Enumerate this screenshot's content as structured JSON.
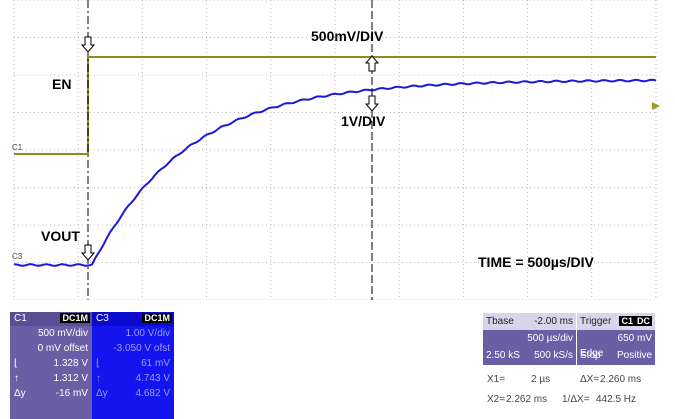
{
  "annotations": {
    "volts_div_top": "500mV/DIV",
    "volts_div_bottom": "1V/DIV",
    "en_label": "EN",
    "vout_label": "VOUT",
    "time_div": "TIME = 500µs/DIV",
    "trace_c1_tag": "C1",
    "trace_c3_tag": "C3"
  },
  "channels": [
    {
      "name": "C1",
      "coupling": "DC1M",
      "scale": "500 mV/div",
      "offset": "0 mV offset",
      "rows": [
        {
          "sym": "⌊",
          "value": "1.328 V"
        },
        {
          "sym": "↑",
          "value": "1.312 V"
        },
        {
          "sym": "Δy",
          "value": "-16 mV"
        }
      ]
    },
    {
      "name": "C3",
      "coupling": "DC1M",
      "scale": "1.00 V/div",
      "offset": "-3.050 V ofst",
      "rows": [
        {
          "sym": "⌊",
          "value": "61 mV"
        },
        {
          "sym": "↑",
          "value": "4.743 V"
        },
        {
          "sym": "Δy",
          "value": "4.682 V"
        }
      ]
    }
  ],
  "timebase": {
    "label": "Tbase",
    "delay": "-2.00 ms",
    "time_div": "500 µs/div",
    "samples": "2.50 kS",
    "rate": "500 kS/s"
  },
  "trigger": {
    "label": "Trigger",
    "channel": "C1",
    "coupling": "DC",
    "level": "650 mV",
    "mode": "Stop",
    "type": "Edge",
    "slope": "Positive"
  },
  "cursors": {
    "x1_label": "X1=",
    "x1_value": "2 µs",
    "dx_label": "ΔX=",
    "dx_value": "2.260 ms",
    "x2_label": "X2=",
    "x2_value": "2.262 ms",
    "inv_dx_label": "1/ΔX=",
    "inv_dx_value": "442.5 Hz"
  },
  "colors": {
    "c1_trace": "#8e8a1e",
    "c3_trace": "#1a1ad8",
    "grid": "#b8b8b8",
    "panel_c1": "#6a5fa4",
    "panel_c3": "#1414ee",
    "trigger_marker": "#a09a20"
  }
}
